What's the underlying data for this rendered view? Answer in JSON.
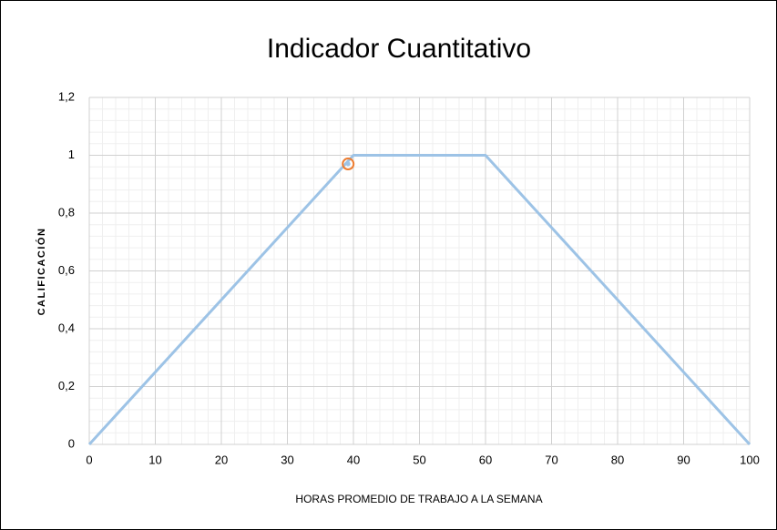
{
  "chart_data": {
    "type": "line",
    "title": "Indicador Cuantitativo",
    "x_label": "HORAS PROMEDIO DE TRABAJO A LA SEMANA",
    "y_label": "CALIFICACIÓN",
    "series": [
      {
        "color": "#9dc3e6",
        "x": [
          0,
          40,
          60,
          100
        ],
        "values": [
          0,
          1,
          1,
          0
        ]
      },
      {
        "color": "#ed7d31",
        "x": [
          39.2
        ],
        "values": [
          0.97
        ],
        "marker": true
      }
    ],
    "xlim": [
      0,
      100
    ],
    "xticks": [
      0,
      10,
      20,
      30,
      40,
      50,
      60,
      70,
      80,
      90,
      100
    ],
    "ylim": [
      0,
      1.2
    ],
    "yticks": [
      0,
      {
        "value": 0.2,
        "label": "0,2"
      },
      {
        "value": 0.4,
        "label": "0,4"
      },
      {
        "value": 0.6,
        "label": "0,6"
      },
      {
        "value": 0.8,
        "label": "0,8"
      },
      1,
      {
        "value": 1.2,
        "label": "1,2"
      }
    ],
    "grid": true,
    "minor_grid": 5
  }
}
